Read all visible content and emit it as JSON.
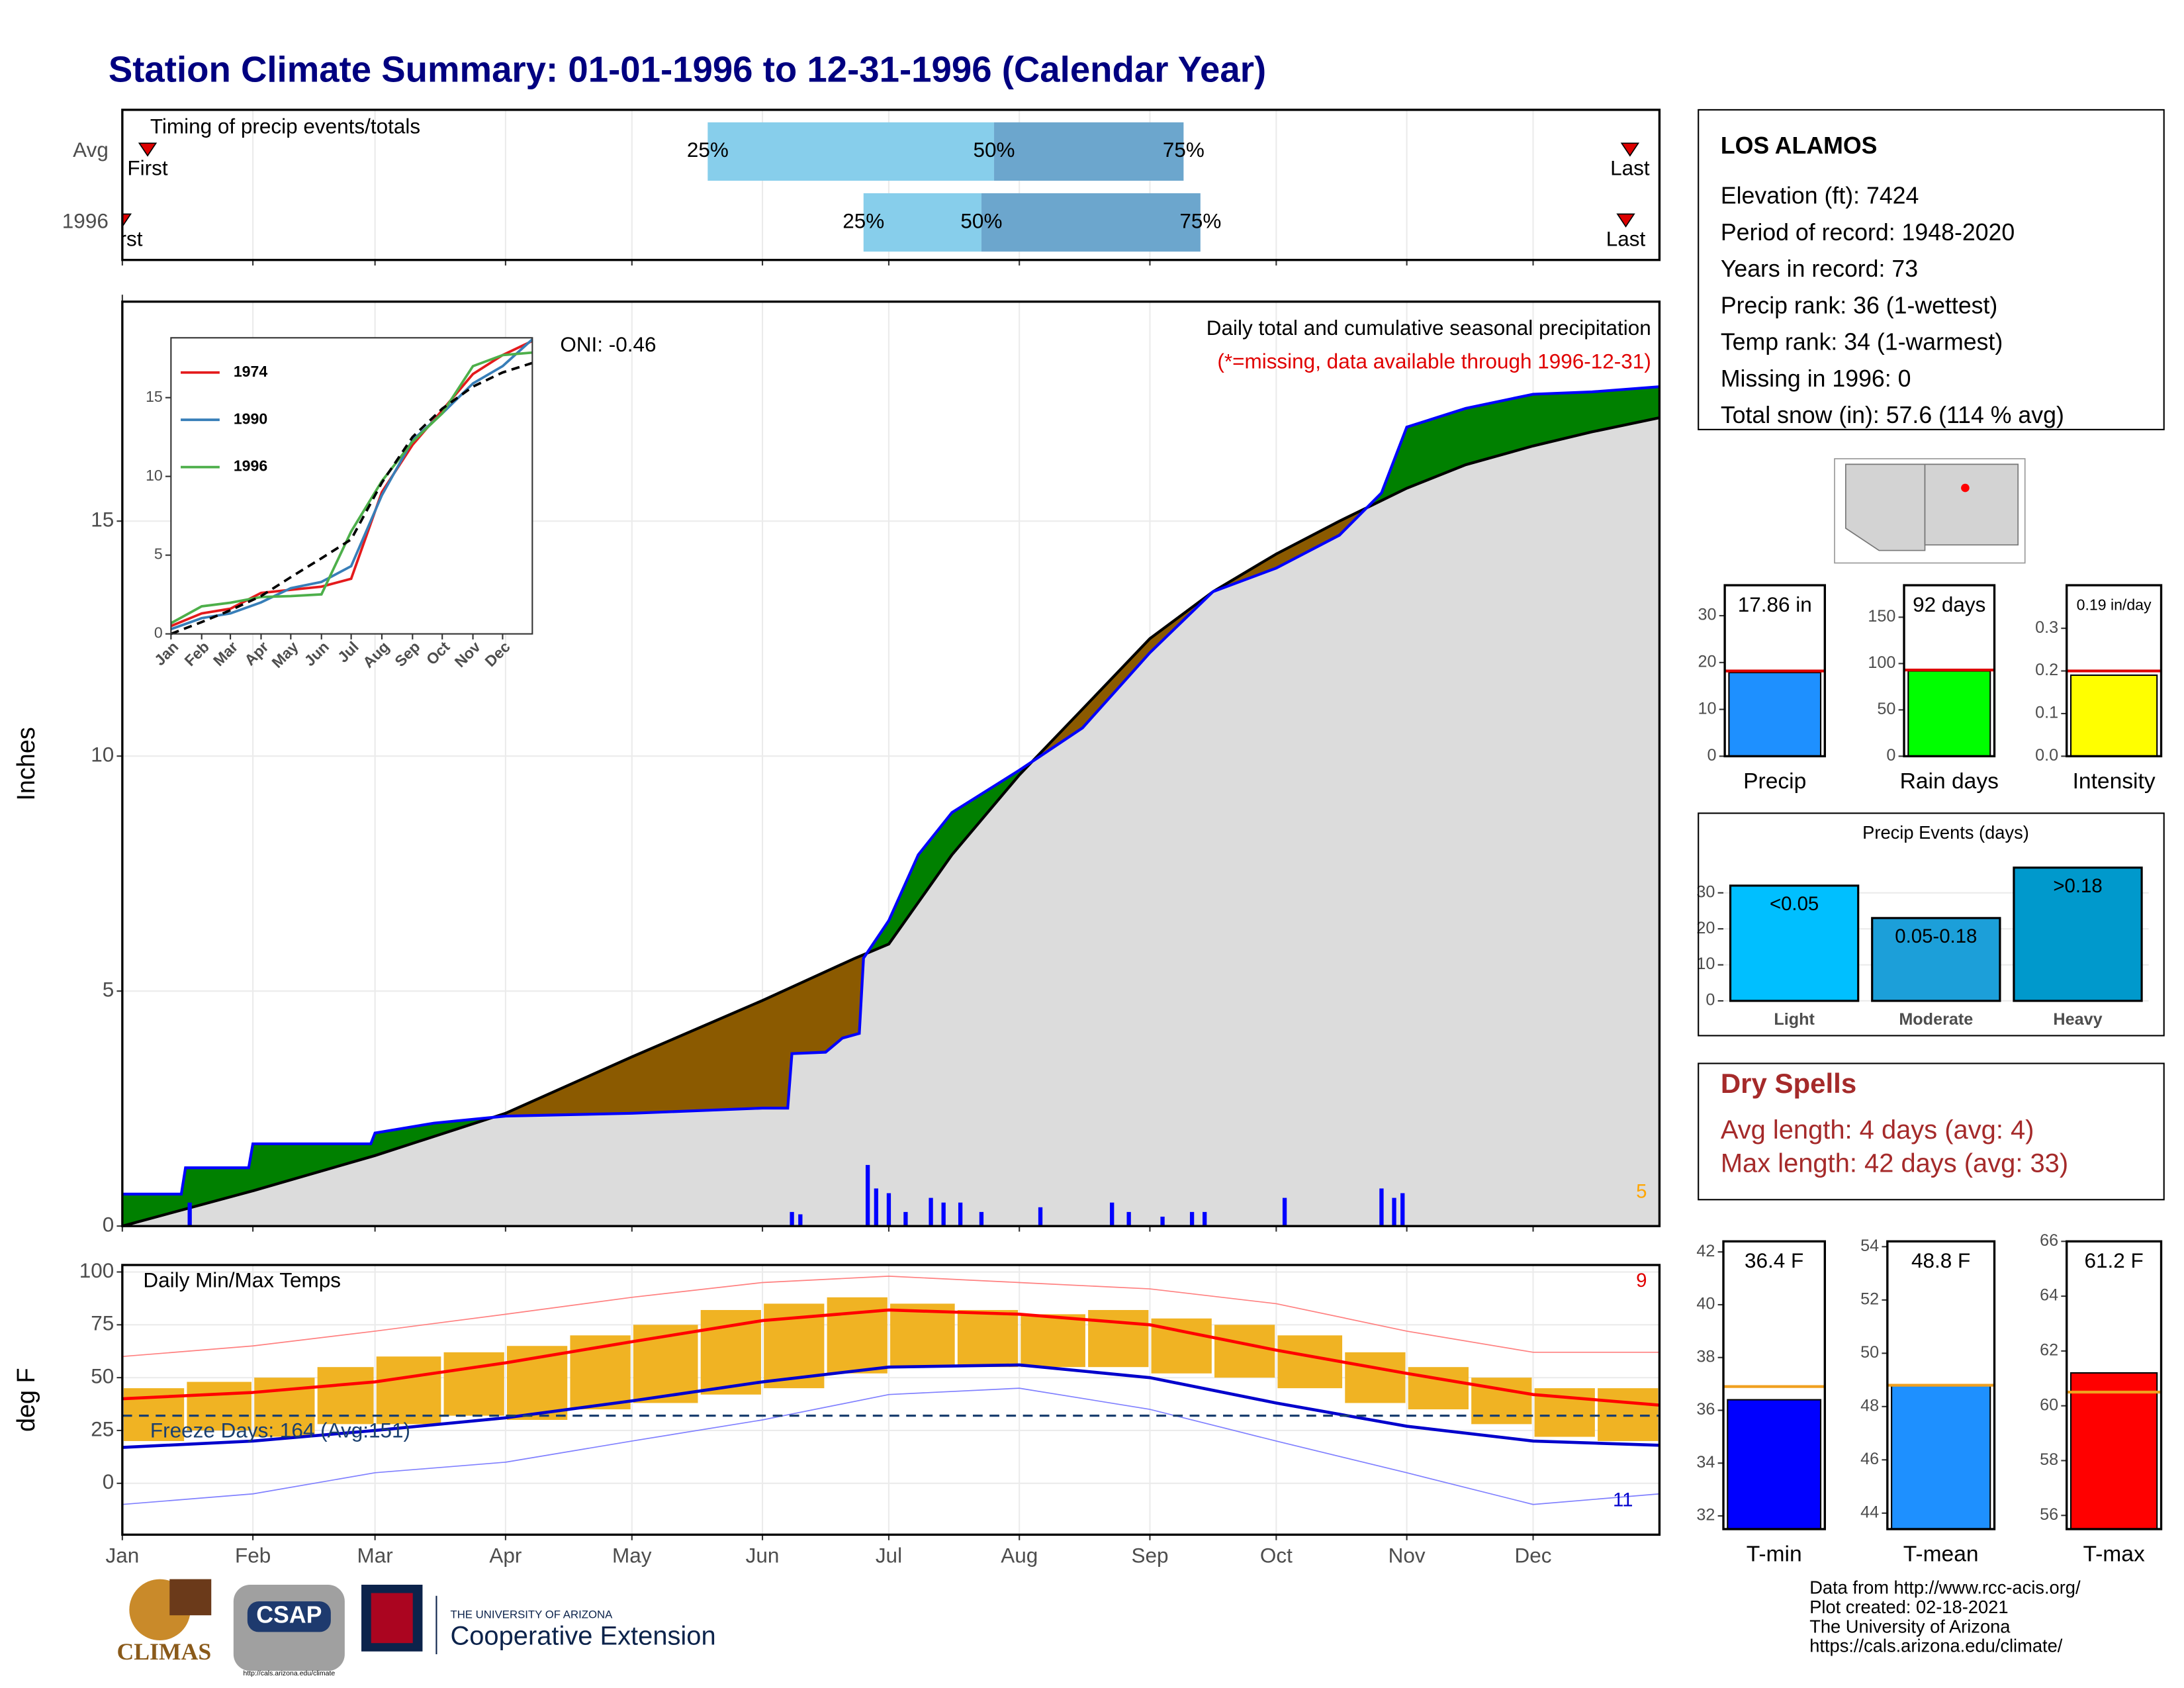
{
  "title": "Station Climate Summary: 01-01-1996 to 12-31-1996 (Calendar Year)",
  "station_info": {
    "name": "LOS ALAMOS",
    "lines": [
      "Elevation (ft): 7424",
      "Period of record: 1948-2020",
      "Years in record: 73",
      "Precip rank: 36 (1-wettest)",
      "Temp rank: 34 (1-warmest)",
      "Missing in 1996: 0",
      "Total snow (in): 57.6 (114 % avg)"
    ]
  },
  "dry_spells": {
    "title": "Dry Spells",
    "lines": [
      "Avg length: 4 days (avg: 4)",
      "Max length: 42 days (avg: 33)"
    ]
  },
  "footer": [
    "Data from http://www.rcc-acis.org/",
    "Plot created: 02-18-2021",
    "The University of Arizona",
    "https://cals.arizona.edu/climate/"
  ],
  "logos": {
    "climas": "CLIMAS",
    "csap": "CSAP",
    "csap_url": "http://cals.arizona.edu/climate",
    "university": "THE UNIVERSITY OF ARIZONA",
    "extension": "Cooperative Extension"
  },
  "chart_data": [
    {
      "type": "timing",
      "title": "Timing of precip events/totals",
      "categories": [
        "Avg",
        "1996"
      ],
      "first": [
        7,
        1
      ],
      "last": [
        359,
        358
      ],
      "p25": [
        140,
        177
      ],
      "p50": [
        208,
        205
      ],
      "p75": [
        253,
        257
      ],
      "first_label": "First",
      "last_label": "Last",
      "p25_label": "25%",
      "p50_label": "50%",
      "p75_label": "75%",
      "xlim": [
        1,
        366
      ],
      "colors": [
        "#87ceeb",
        "#6ca6cd"
      ],
      "marker_color": "#dd0000"
    },
    {
      "type": "cumulative-area",
      "title": "Daily total and cumulative seasonal precipitation",
      "note": "(*=missing, data available through 1996-12-31)",
      "oni": "ONI: -0.46",
      "count": "5",
      "y_label": "Inches",
      "xlim": [
        1,
        366
      ],
      "ylim": [
        0,
        19.67
      ],
      "yticks": [
        0,
        5,
        10,
        15
      ],
      "grid": true,
      "series": [
        {
          "color": "#0000ff",
          "x": [
            1,
            15,
            16,
            31,
            32,
            60,
            61,
            75,
            92,
            122,
            153,
            159,
            160,
            168,
            172,
            176,
            177,
            183,
            190,
            198,
            214,
            229,
            245,
            260,
            275,
            290,
            300,
            306,
            320,
            336,
            350,
            366
          ],
          "values": [
            0.68,
            0.68,
            1.24,
            1.24,
            1.75,
            1.75,
            1.98,
            2.19,
            2.34,
            2.4,
            2.51,
            2.51,
            3.67,
            3.7,
            4.0,
            4.1,
            5.7,
            6.5,
            7.9,
            8.8,
            9.7,
            10.6,
            12.2,
            13.5,
            14.0,
            14.7,
            15.6,
            17.0,
            17.4,
            17.7,
            17.75,
            17.86
          ]
        },
        {
          "color": "#000000",
          "x": [
            1,
            32,
            61,
            92,
            122,
            153,
            175,
            183,
            198,
            214,
            229,
            245,
            260,
            275,
            290,
            306,
            320,
            336,
            350,
            366
          ],
          "values": [
            0,
            0.75,
            1.5,
            2.4,
            3.6,
            4.8,
            5.7,
            6.0,
            7.9,
            9.6,
            11.0,
            12.5,
            13.5,
            14.3,
            15.0,
            15.7,
            16.2,
            16.6,
            16.9,
            17.2
          ]
        }
      ],
      "above_color": "#008000",
      "below_color": "#8b5a00",
      "base_color": "#dcdcdc",
      "daily": {
        "color": "#0000ff",
        "x": [
          17,
          160,
          162,
          178,
          180,
          183,
          187,
          193,
          196,
          200,
          205,
          219,
          236,
          240,
          248,
          255,
          258,
          277,
          300,
          303,
          305
        ],
        "values": [
          0.5,
          0.3,
          0.25,
          1.3,
          0.8,
          0.7,
          0.3,
          0.6,
          0.5,
          0.5,
          0.3,
          0.4,
          0.5,
          0.3,
          0.2,
          0.3,
          0.3,
          0.6,
          0.8,
          0.6,
          0.7
        ]
      }
    },
    {
      "type": "line",
      "xlim": [
        1,
        366
      ],
      "ylim": [
        0,
        18.8
      ],
      "yticks": [
        0,
        5,
        10,
        15
      ],
      "xticks": [
        {
          "value": 1,
          "label": "Jan"
        },
        {
          "value": 32,
          "label": "Feb"
        },
        {
          "value": 61,
          "label": "Mar"
        },
        {
          "value": 92,
          "label": "Apr"
        },
        {
          "value": 122,
          "label": "May"
        },
        {
          "value": 153,
          "label": "Jun"
        },
        {
          "value": 183,
          "label": "Jul"
        },
        {
          "value": 214,
          "label": "Aug"
        },
        {
          "value": 245,
          "label": "Sep"
        },
        {
          "value": 275,
          "label": "Oct"
        },
        {
          "value": 306,
          "label": "Nov"
        },
        {
          "value": 336,
          "label": "Dec"
        }
      ],
      "series": [
        {
          "name": "1974",
          "color": "#e41a1c",
          "x": [
            1,
            32,
            61,
            92,
            122,
            153,
            183,
            214,
            245,
            275,
            306,
            336,
            366
          ],
          "values": [
            0.5,
            1.3,
            1.6,
            2.6,
            2.8,
            3.0,
            3.5,
            9.0,
            12.0,
            14.2,
            16.5,
            17.7,
            18.6
          ]
        },
        {
          "name": "1990",
          "color": "#377eb8",
          "x": [
            1,
            32,
            61,
            92,
            122,
            153,
            183,
            214,
            245,
            275,
            306,
            336,
            366
          ],
          "values": [
            0.3,
            1.0,
            1.3,
            2.0,
            2.9,
            3.3,
            4.3,
            8.8,
            12.3,
            14.0,
            15.9,
            17.0,
            18.7
          ]
        },
        {
          "name": "1996",
          "color": "#4daf4a",
          "x": [
            1,
            32,
            61,
            92,
            122,
            153,
            183,
            214,
            245,
            275,
            306,
            336,
            366
          ],
          "values": [
            0.68,
            1.75,
            1.98,
            2.34,
            2.4,
            2.51,
            6.5,
            9.7,
            12.2,
            14.0,
            17.0,
            17.7,
            17.86
          ]
        }
      ],
      "normal": {
        "color": "#000000",
        "x": [
          1,
          32,
          61,
          92,
          122,
          153,
          183,
          214,
          245,
          275,
          306,
          336,
          366
        ],
        "values": [
          0,
          0.75,
          1.5,
          2.4,
          3.6,
          4.8,
          6.0,
          9.6,
          12.5,
          14.3,
          15.7,
          16.6,
          17.2
        ]
      }
    },
    {
      "type": "temperature",
      "title": "Daily Min/Max Temps",
      "y_label": "deg F",
      "xlim": [
        1,
        366
      ],
      "ylim": [
        -24.3,
        103.3
      ],
      "yticks": [
        0,
        25,
        50,
        75,
        100
      ],
      "grid": true,
      "xticks": [
        {
          "value": 1,
          "label": "Jan"
        },
        {
          "value": 32,
          "label": "Feb"
        },
        {
          "value": 61,
          "label": "Mar"
        },
        {
          "value": 92,
          "label": "Apr"
        },
        {
          "value": 122,
          "label": "May"
        },
        {
          "value": 153,
          "label": "Jun"
        },
        {
          "value": 183,
          "label": "Jul"
        },
        {
          "value": 214,
          "label": "Aug"
        },
        {
          "value": 245,
          "label": "Sep"
        },
        {
          "value": 275,
          "label": "Oct"
        },
        {
          "value": 306,
          "label": "Nov"
        },
        {
          "value": 336,
          "label": "Dec"
        }
      ],
      "ranges": {
        "color": "#f0b323",
        "x": [
          1,
          16,
          32,
          47,
          61,
          77,
          92,
          107,
          122,
          138,
          153,
          168,
          183,
          199,
          214,
          230,
          245,
          260,
          275,
          291,
          306,
          321,
          336,
          351
        ],
        "lows": [
          20,
          25,
          22,
          28,
          28,
          32,
          30,
          35,
          38,
          42,
          45,
          52,
          55,
          55,
          55,
          55,
          52,
          50,
          45,
          38,
          35,
          28,
          22,
          20
        ],
        "highs": [
          45,
          48,
          50,
          55,
          60,
          62,
          65,
          70,
          75,
          82,
          85,
          88,
          85,
          82,
          80,
          82,
          78,
          75,
          70,
          62,
          55,
          50,
          45,
          45
        ]
      },
      "series": [
        {
          "color": "#ff8080",
          "x": [
            1,
            32,
            61,
            92,
            122,
            153,
            183,
            214,
            245,
            275,
            306,
            336,
            366
          ],
          "values": [
            60,
            65,
            72,
            80,
            88,
            95,
            98,
            95,
            92,
            85,
            72,
            62,
            62
          ]
        },
        {
          "color": "#8080ff",
          "x": [
            1,
            32,
            61,
            92,
            122,
            153,
            183,
            214,
            245,
            275,
            306,
            336,
            366
          ],
          "values": [
            -10,
            -5,
            5,
            10,
            20,
            30,
            42,
            45,
            35,
            20,
            5,
            -10,
            -5
          ]
        },
        {
          "color": "#ff0000",
          "x": [
            1,
            32,
            61,
            92,
            122,
            153,
            183,
            214,
            245,
            275,
            306,
            336,
            366
          ],
          "values": [
            40,
            43,
            48,
            57,
            67,
            77,
            82,
            80,
            75,
            63,
            52,
            42,
            37
          ]
        },
        {
          "color": "#0000cc",
          "x": [
            1,
            32,
            61,
            92,
            122,
            153,
            183,
            214,
            245,
            275,
            306,
            336,
            366
          ],
          "values": [
            17,
            20,
            25,
            31,
            39,
            48,
            55,
            56,
            50,
            38,
            27,
            20,
            18
          ]
        }
      ],
      "freeze_line": 32,
      "freeze_label": "Freeze Days: 164 (Avg:151)",
      "hot_count": "9",
      "cold_count": "11"
    },
    {
      "type": "summary-bar",
      "categories": [
        "Precip"
      ],
      "values": [
        17.86
      ],
      "value_labels": [
        "17.86 in"
      ],
      "average": 18.2,
      "color": "#1e90ff",
      "average_color": "#dd0000",
      "ylim": [
        0,
        36.5
      ],
      "yticks": [
        0,
        10,
        20,
        30
      ]
    },
    {
      "type": "summary-bar",
      "categories": [
        "Rain days"
      ],
      "values": [
        92
      ],
      "value_labels": [
        "92 days"
      ],
      "average": 93,
      "color": "#00ff00",
      "average_color": "#dd0000",
      "ylim": [
        0,
        184.5
      ],
      "yticks": [
        0,
        50,
        100,
        150
      ]
    },
    {
      "type": "summary-bar",
      "categories": [
        "Intensity"
      ],
      "values": [
        0.19
      ],
      "value_labels": [
        "0.19 in/day"
      ],
      "average": 0.2,
      "color": "#ffff00",
      "average_color": "#dd0000",
      "ylim": [
        0,
        0.401
      ],
      "yticks": [
        {
          "value": 0,
          "label": "0.0"
        },
        {
          "value": 0.1,
          "label": "0.1"
        },
        {
          "value": 0.2,
          "label": "0.2"
        },
        {
          "value": 0.3,
          "label": "0.3"
        }
      ]
    },
    {
      "type": "bar",
      "title": "Precip Events (days)",
      "categories": [
        "Light",
        "Moderate",
        "Heavy"
      ],
      "values": [
        32,
        23,
        37
      ],
      "bar_labels": [
        "<0.05",
        "0.05-0.18",
        ">0.18"
      ],
      "colors": [
        "#00bfff",
        "#1c9fd9",
        "#0099cc"
      ],
      "ylim": [
        0,
        38.6
      ],
      "yticks": [
        0,
        10,
        20,
        30
      ],
      "grid": true
    },
    {
      "type": "summary-bar",
      "categories": [
        "T-min"
      ],
      "values": [
        36.4
      ],
      "value_labels": [
        "36.4 F"
      ],
      "average": 36.9,
      "color": "#0000ff",
      "average_color": "#f0a020",
      "ylim": [
        31.5,
        42.4
      ],
      "yticks": [
        32,
        34,
        36,
        38,
        40,
        42
      ]
    },
    {
      "type": "summary-bar",
      "categories": [
        "T-mean"
      ],
      "values": [
        48.8
      ],
      "value_labels": [
        "48.8 F"
      ],
      "average": 48.8,
      "color": "#1e90ff",
      "average_color": "#f0a020",
      "ylim": [
        43.4,
        54.2
      ],
      "yticks": [
        44,
        46,
        48,
        50,
        52,
        54
      ]
    },
    {
      "type": "summary-bar",
      "categories": [
        "T-max"
      ],
      "values": [
        61.2
      ],
      "value_labels": [
        "61.2 F"
      ],
      "average": 60.5,
      "color": "#ff0000",
      "average_color": "#f0a020",
      "ylim": [
        55.5,
        66
      ],
      "yticks": [
        56,
        58,
        60,
        62,
        64,
        66
      ]
    }
  ]
}
